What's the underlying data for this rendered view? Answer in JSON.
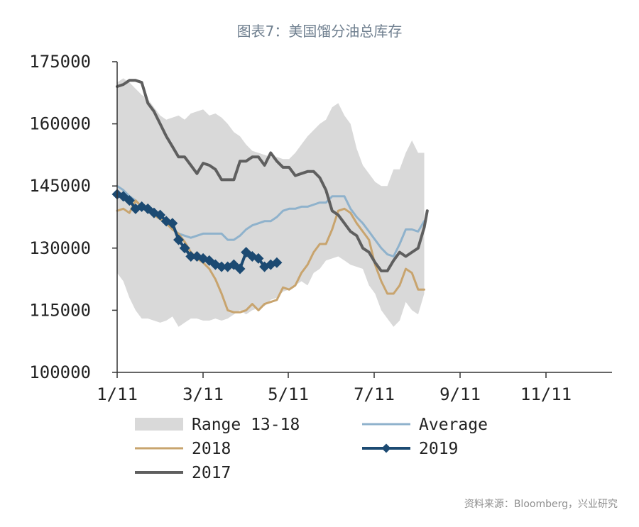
{
  "title": "图表7：美国馏分油总库存",
  "source": "资料来源：Bloomberg，兴业研究",
  "colors": {
    "range": "#d9d9d9",
    "average": "#8fb2cc",
    "y2018": "#c8a46e",
    "y2019": "#1c4a72",
    "y2017": "#5f5f5f",
    "axis": "#333333"
  },
  "chart_data": {
    "type": "line",
    "ylim": [
      100000,
      175000
    ],
    "y_ticks": [
      100000,
      115000,
      130000,
      145000,
      160000,
      175000
    ],
    "x_ticks": [
      "1/11",
      "3/11",
      "5/11",
      "7/11",
      "9/11",
      "11/11"
    ],
    "x_range_weeks": [
      0,
      50.5
    ],
    "legend": [
      {
        "key": "range",
        "label": "Range 13-18"
      },
      {
        "key": "average",
        "label": "Average"
      },
      {
        "key": "y2018",
        "label": "2018"
      },
      {
        "key": "y2019",
        "label": "2019"
      },
      {
        "key": "y2017",
        "label": "2017"
      }
    ],
    "range_band": {
      "x": [
        0,
        1,
        2,
        3,
        4,
        5,
        6,
        7,
        8,
        9,
        10,
        11,
        12,
        13,
        14,
        15,
        16,
        17,
        18,
        19,
        20,
        21,
        22,
        23,
        24,
        25,
        26,
        27,
        28,
        29,
        30,
        31,
        32,
        33,
        34,
        35,
        36,
        37,
        38,
        39,
        40,
        41,
        42,
        43,
        44,
        45,
        46,
        47,
        48,
        49,
        50
      ],
      "upper": [
        170000,
        171000,
        170000,
        168500,
        167000,
        166000,
        164000,
        162000,
        161000,
        161500,
        162000,
        161000,
        162500,
        163000,
        163500,
        162000,
        162500,
        161500,
        160000,
        158000,
        157000,
        155000,
        153500,
        153000,
        152500,
        152000,
        152000,
        151500,
        151500,
        153000,
        155000,
        157000,
        158500,
        160000,
        161000,
        164000,
        165000,
        162000,
        160000,
        154000,
        150000,
        148000,
        146000,
        145000,
        145000,
        149000,
        149000,
        153000,
        156000,
        153000,
        153000
      ],
      "lower": [
        124000,
        122000,
        118000,
        115000,
        113000,
        113000,
        112500,
        112000,
        112500,
        113500,
        111000,
        112000,
        113000,
        113000,
        112500,
        112500,
        113000,
        112500,
        113000,
        114000,
        115000,
        114000,
        115000,
        115500,
        116000,
        117500,
        118000,
        119500,
        120000,
        121000,
        122000,
        121000,
        124000,
        125000,
        127000,
        127500,
        128000,
        127000,
        126000,
        125500,
        125000,
        121000,
        119000,
        115000,
        113000,
        111000,
        112500,
        117000,
        115000,
        114000,
        119000
      ]
    },
    "series": [
      {
        "key": "average",
        "name": "Average",
        "x": [
          0,
          1,
          2,
          3,
          4,
          5,
          6,
          7,
          8,
          9,
          10,
          11,
          12,
          13,
          14,
          15,
          16,
          17,
          18,
          19,
          20,
          21,
          22,
          23,
          24,
          25,
          26,
          27,
          28,
          29,
          30,
          31,
          32,
          33,
          34,
          35,
          36,
          37,
          38,
          39,
          40,
          41,
          42,
          43,
          44,
          45,
          46,
          47,
          48,
          49,
          50
        ],
        "values": [
          145000,
          144000,
          142500,
          141500,
          140000,
          139500,
          138000,
          137000,
          136000,
          134500,
          133500,
          133000,
          132500,
          133000,
          133500,
          133500,
          133500,
          133500,
          132000,
          132000,
          133000,
          134500,
          135500,
          136000,
          136500,
          136500,
          137500,
          139000,
          139500,
          139500,
          140000,
          140000,
          140500,
          141000,
          141000,
          142500,
          142500,
          142500,
          139500,
          137500,
          136000,
          134000,
          132000,
          130000,
          128500,
          128000,
          131000,
          134500,
          134500,
          134000,
          136500
        ]
      },
      {
        "key": "y2018",
        "name": "2018",
        "x": [
          0,
          1,
          2,
          3,
          4,
          5,
          6,
          7,
          8,
          9,
          10,
          11,
          12,
          13,
          14,
          15,
          16,
          17,
          18,
          19,
          20,
          21,
          22,
          23,
          24,
          25,
          26,
          27,
          28,
          29,
          30,
          31,
          32,
          33,
          34,
          35,
          36,
          37,
          38,
          39,
          40,
          41,
          42,
          43,
          44,
          45,
          46,
          47,
          48,
          49,
          50
        ],
        "values": [
          139000,
          139500,
          138500,
          141500,
          140000,
          139500,
          138000,
          137000,
          136000,
          134500,
          133500,
          131500,
          129000,
          127500,
          126500,
          125000,
          122500,
          119000,
          115000,
          114500,
          114500,
          115000,
          116500,
          115000,
          116500,
          117000,
          117500,
          120500,
          120000,
          121000,
          124000,
          126000,
          129000,
          131000,
          131000,
          134500,
          139000,
          139500,
          138500,
          136000,
          134000,
          132000,
          126000,
          122000,
          119000,
          119000,
          121000,
          125000,
          124000,
          120000,
          120000
        ]
      },
      {
        "key": "y2017",
        "name": "2017",
        "x": [
          0,
          1,
          2,
          3,
          4,
          5,
          6,
          7,
          8,
          9,
          10,
          11,
          12,
          13,
          14,
          15,
          16,
          17,
          18,
          19,
          20,
          21,
          22,
          23,
          24,
          25,
          26,
          27,
          28,
          29,
          30,
          31,
          32,
          33,
          34,
          35,
          36,
          37,
          38,
          39,
          40,
          41,
          42,
          43,
          44,
          45,
          46,
          47,
          48,
          49,
          50,
          50.5
        ],
        "values": [
          169000,
          169500,
          170500,
          170500,
          170000,
          165000,
          163000,
          160000,
          157000,
          154500,
          152000,
          152000,
          150000,
          148000,
          150500,
          150000,
          149000,
          146500,
          146500,
          146500,
          151000,
          151000,
          152000,
          152000,
          150000,
          153000,
          151000,
          149500,
          149500,
          147500,
          148000,
          148500,
          148500,
          147000,
          144000,
          139000,
          138000,
          136000,
          134000,
          133000,
          130000,
          129000,
          126500,
          124500,
          124500,
          127000,
          129000,
          128000,
          129000,
          130000,
          135000,
          139000
        ]
      },
      {
        "key": "y2019",
        "name": "2019",
        "x": [
          0,
          1,
          2,
          3,
          4,
          5,
          6,
          7,
          8,
          9,
          10,
          11,
          12,
          13,
          14,
          15,
          16,
          17,
          18,
          19,
          20,
          21,
          22,
          23,
          24,
          25,
          26
        ],
        "values": [
          143000,
          142500,
          141500,
          139500,
          140000,
          139500,
          138500,
          138000,
          136500,
          136000,
          132000,
          130000,
          128000,
          128000,
          127500,
          127000,
          126000,
          125500,
          125500,
          126000,
          125000,
          129000,
          128000,
          127500,
          125500,
          126000,
          126500
        ]
      }
    ]
  }
}
